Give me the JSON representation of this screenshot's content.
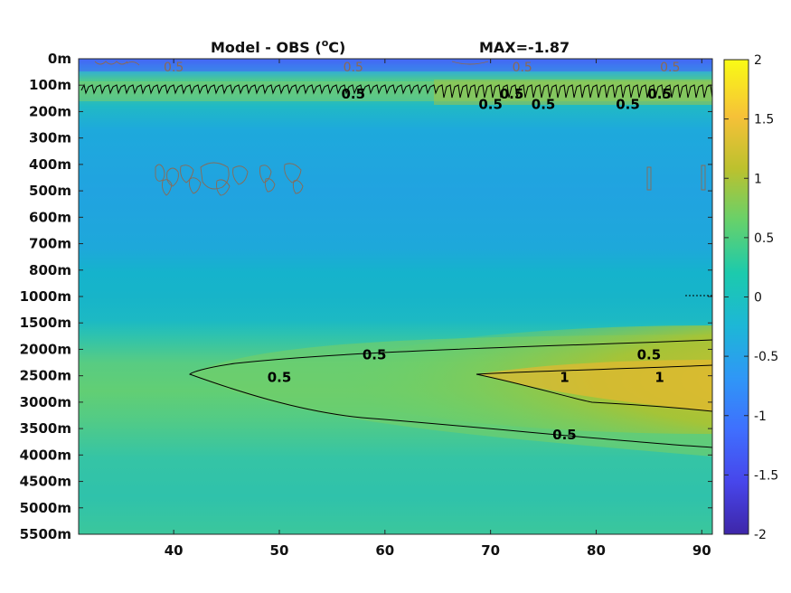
{
  "chart_data": {
    "type": "heatmap",
    "title": "Model - OBS (",
    "title_unit": "C)",
    "title_degree": "o",
    "max_label": "MAX=-1.87",
    "x_ticks": [
      "40",
      "50",
      "60",
      "70",
      "80",
      "90"
    ],
    "x_tick_values": [
      40,
      50,
      60,
      70,
      80,
      90
    ],
    "xlim": [
      31,
      91
    ],
    "y_ticks": [
      "0m",
      "100m",
      "200m",
      "300m",
      "400m",
      "500m",
      "600m",
      "700m",
      "800m",
      "1000m",
      "1500m",
      "2000m",
      "2500m",
      "3000m",
      "3500m",
      "4000m",
      "4500m",
      "5000m",
      "5500m"
    ],
    "colorbar_ticks": [
      "2",
      "1.5",
      "1",
      "0.5",
      "0",
      "-0.5",
      "-1",
      "-1.5",
      "-2"
    ],
    "colorbar_values": [
      2,
      1.5,
      1,
      0.5,
      0,
      -0.5,
      -1,
      -1.5,
      -2
    ],
    "clim": [
      -2,
      2
    ],
    "colormap": [
      "#3e26a8",
      "#4746eb",
      "#3f6ffe",
      "#2f97f6",
      "#1db7d6",
      "#1ccaad",
      "#66d16b",
      "#bcc12e",
      "#f6c138",
      "#f9fb15"
    ],
    "contour_labels": [
      {
        "text": "0.5",
        "x": 40,
        "y_level": "0m",
        "color": "grey"
      },
      {
        "text": "0.5",
        "x": 57,
        "y_level": "0m",
        "color": "grey"
      },
      {
        "text": "0.5",
        "x": 73,
        "y_level": "0m",
        "color": "grey"
      },
      {
        "text": "0.5",
        "x": 87,
        "y_level": "0m",
        "color": "grey"
      },
      {
        "text": "0.5",
        "x": 57,
        "y_level": "100m",
        "color": "black"
      },
      {
        "text": "0.5",
        "x": 70,
        "y_level": "200m",
        "color": "black"
      },
      {
        "text": "0.5",
        "x": 72,
        "y_level": "100m",
        "color": "black"
      },
      {
        "text": "0.5",
        "x": 75,
        "y_level": "200m",
        "color": "black"
      },
      {
        "text": "0.5",
        "x": 86,
        "y_level": "100m",
        "color": "black"
      },
      {
        "text": "0.5",
        "x": 83,
        "y_level": "200m",
        "color": "black"
      },
      {
        "text": "0.5",
        "x": 59,
        "y_level": "2000m",
        "color": "black"
      },
      {
        "text": "0.5",
        "x": 50,
        "y_level": "2500m",
        "color": "black"
      },
      {
        "text": "0.5",
        "x": 85,
        "y_level": "2000m",
        "color": "black"
      },
      {
        "text": "1",
        "x": 86,
        "y_level": "2500m",
        "color": "black"
      },
      {
        "text": "1",
        "x": 77,
        "y_level": "2500m",
        "color": "black"
      },
      {
        "text": "0.5",
        "x": 77,
        "y_level": "3500m",
        "color": "black"
      }
    ],
    "grid": false,
    "colorbar": "right"
  }
}
